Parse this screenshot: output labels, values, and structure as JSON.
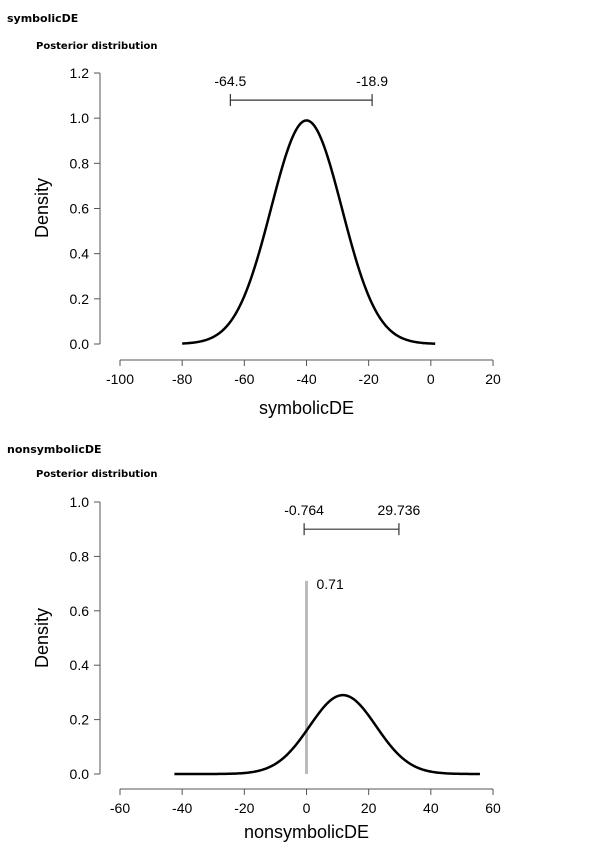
{
  "chart_data": [
    {
      "type": "line",
      "section_title": "symbolicDE",
      "title": "Posterior distribution",
      "xlabel": "symbolicDE",
      "ylabel": "Density",
      "xlim": [
        -100,
        20
      ],
      "ylim": [
        0,
        1.2
      ],
      "x_ticks": [
        -100,
        -80,
        -60,
        -40,
        -20,
        0,
        20
      ],
      "x_tick_labels": [
        "-100",
        "-80",
        "-60",
        "-40",
        "-20",
        "0",
        "20"
      ],
      "y_ticks": [
        0,
        0.2,
        0.4,
        0.6,
        0.8,
        1.0,
        1.2
      ],
      "y_tick_labels": [
        "0.0",
        "0.2",
        "0.4",
        "0.6",
        "0.8",
        "1.0",
        "1.2"
      ],
      "density": {
        "mean": -40,
        "sd": 11.4,
        "peak": 0.99,
        "x_range": [
          -80,
          1.4
        ]
      },
      "credible_interval": {
        "lower": -64.5,
        "upper": -18.9,
        "lower_label": "-64.5",
        "upper_label": "-18.9",
        "y": 1.08
      },
      "grid": false,
      "line_color": "#000000"
    },
    {
      "type": "line",
      "section_title": "nonsymbolicDE",
      "title": "Posterior distribution",
      "xlabel": "nonsymbolicDE",
      "ylabel": "Density",
      "xlim": [
        -60,
        60
      ],
      "ylim": [
        0,
        1.0
      ],
      "x_ticks": [
        -60,
        -40,
        -20,
        0,
        20,
        40,
        60
      ],
      "x_tick_labels": [
        "-60",
        "-40",
        "-20",
        "0",
        "20",
        "40",
        "60"
      ],
      "y_ticks": [
        0,
        0.2,
        0.4,
        0.6,
        0.8,
        1.0
      ],
      "y_tick_labels": [
        "0.0",
        "0.2",
        "0.4",
        "0.6",
        "0.8",
        "1.0"
      ],
      "density": {
        "mean": 11.7,
        "sd": 10.7,
        "peak": 0.29,
        "x_range": [
          -42.5,
          55.8
        ]
      },
      "credible_interval": {
        "lower": -0.764,
        "upper": 29.736,
        "lower_label": "-0.764",
        "upper_label": "29.736",
        "y": 0.9
      },
      "reference_line": {
        "x": 0,
        "y_top": 0.71,
        "label": "0.71",
        "color": "#bbbbbb"
      },
      "grid": false,
      "line_color": "#000000"
    }
  ]
}
